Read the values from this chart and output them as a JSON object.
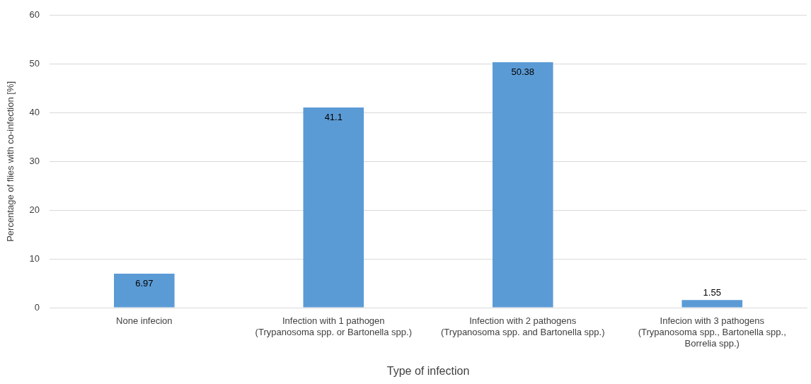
{
  "chart_data": {
    "type": "bar",
    "xlabel": "Type of infection",
    "ylabel": "Percentage of flies with co-infection [%]",
    "categories": [
      "None infecion",
      "Infection with 1 pathogen\n(Trypanosoma spp. or Bartonella spp.)",
      "Infection with 2 pathogens\n(Trypanosoma spp. and Bartonella spp.)",
      "Infecion with 3 pathogens\n(Trypanosoma spp., Bartonella spp.,\nBorrelia spp.)"
    ],
    "values": [
      6.97,
      41.1,
      50.38,
      1.55
    ],
    "color": "#5b9bd5",
    "ylim": [
      0,
      60
    ],
    "yticks": [
      0,
      10,
      20,
      30,
      40,
      50,
      60
    ],
    "grid": "y",
    "data_labels": true,
    "legend": false
  }
}
